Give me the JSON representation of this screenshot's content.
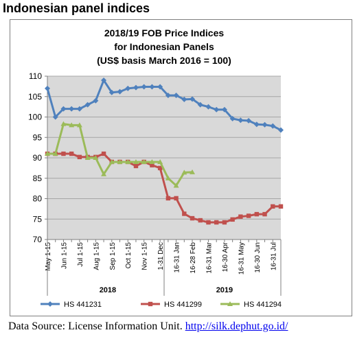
{
  "page": {
    "heading": "Indonesian panel indices",
    "source_prefix": "Data Source: License Information Unit. ",
    "source_link": "http://silk.dephut.go.id/"
  },
  "chart_data": {
    "type": "line",
    "title_lines": [
      "2018/19 FOB Price Indices",
      "for Indonesian Panels",
      "(US$ basis March 2016 = 100)"
    ],
    "ylim": [
      70,
      110
    ],
    "yticks": [
      70,
      75,
      80,
      85,
      90,
      95,
      100,
      105,
      110
    ],
    "grid": "horizontal",
    "legend_position": "bottom",
    "x_count": 30,
    "x_tick_labels": [
      {
        "i": 0,
        "label": "May 1-15"
      },
      {
        "i": 2,
        "label": "Jun 1-15"
      },
      {
        "i": 4,
        "label": "Jul 1-15"
      },
      {
        "i": 6,
        "label": "Aug 1-15"
      },
      {
        "i": 8,
        "label": "Sep 1-15"
      },
      {
        "i": 10,
        "label": "Oct 1-15"
      },
      {
        "i": 12,
        "label": "Nov 1-15"
      },
      {
        "i": 14,
        "label": "1-31 Dec"
      },
      {
        "i": 16,
        "label": "16-31 Jan"
      },
      {
        "i": 18,
        "label": "16-28 Feb"
      },
      {
        "i": 20,
        "label": "16-31 Mar"
      },
      {
        "i": 22,
        "label": "16-30 Apr"
      },
      {
        "i": 24,
        "label": "16-31 May"
      },
      {
        "i": 26,
        "label": "16-30 Jun"
      },
      {
        "i": 28,
        "label": "16-31 Jul"
      }
    ],
    "year_groups": [
      {
        "label": "2018",
        "start": 0,
        "end": 15
      },
      {
        "label": "2019",
        "start": 15,
        "end": 29
      }
    ],
    "series": [
      {
        "name": "HS 441231",
        "color": "#4f81bd",
        "marker": "diamond",
        "values": [
          107,
          100,
          102,
          102,
          102,
          103,
          104,
          109,
          106,
          106.2,
          107,
          107.2,
          107.4,
          107.4,
          107.4,
          105.3,
          105.3,
          104.3,
          104.4,
          103,
          102.5,
          101.8,
          101.8,
          99.6,
          99.2,
          99.1,
          98.2,
          98.1,
          97.8,
          96.8
        ]
      },
      {
        "name": "HS 441299",
        "color": "#c0504d",
        "marker": "square",
        "values": [
          91,
          91,
          91,
          91,
          90.2,
          90.2,
          90.2,
          91,
          89,
          89,
          89,
          88,
          89,
          88.2,
          87.5,
          80.1,
          80.1,
          76.3,
          75.2,
          74.7,
          74.2,
          74.2,
          74.2,
          74.9,
          75.6,
          75.8,
          76.2,
          76.2,
          78.1,
          78.1
        ]
      },
      {
        "name": "HS 441294",
        "color": "#9bbb59",
        "marker": "triangle",
        "values": [
          91,
          91,
          98.3,
          98,
          98,
          90,
          90,
          86,
          89,
          89,
          89,
          89,
          89,
          89,
          89,
          85,
          83.2,
          86.4,
          86.5,
          null,
          null,
          null,
          null,
          null,
          null,
          null,
          null,
          null,
          null,
          null
        ]
      }
    ]
  }
}
